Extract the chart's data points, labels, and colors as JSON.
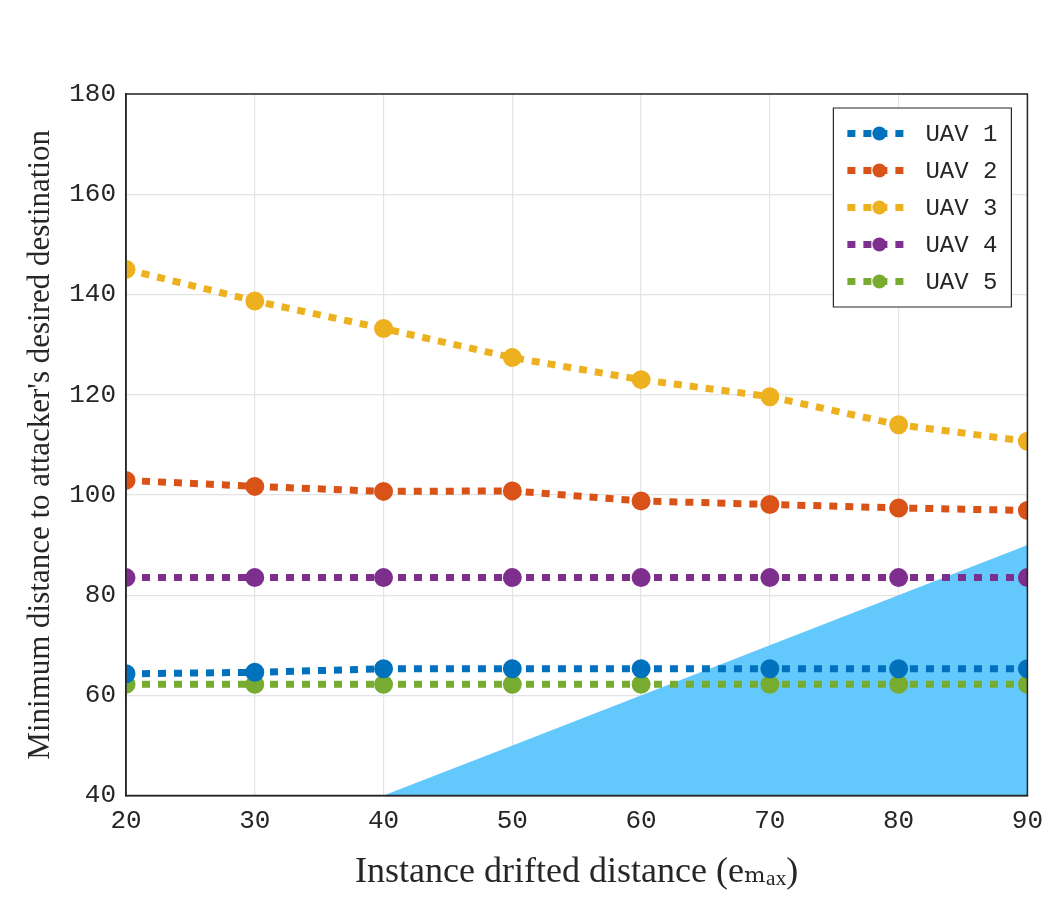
{
  "chart_data": {
    "type": "line",
    "xlabel": "Instance drifted distance (eₘₐₓ)",
    "ylabel": "Minimum distance to attacker's desired destination",
    "x": [
      20,
      30,
      40,
      50,
      60,
      70,
      80,
      90
    ],
    "series": [
      {
        "type": "area",
        "color": "#63c9fc",
        "x": [
          40,
          90
        ],
        "values": [
          40,
          90
        ],
        "marker": "none"
      },
      {
        "name": "UAV 1",
        "color": "#0072bd",
        "values": [
          64.3,
          64.6,
          65.3,
          65.3,
          65.3,
          65.3,
          65.3,
          65.3
        ]
      },
      {
        "name": "UAV 2",
        "color": "#d95319",
        "values": [
          102.9,
          101.7,
          100.7,
          100.8,
          98.8,
          98.1,
          97.4,
          96.9
        ]
      },
      {
        "name": "UAV 3",
        "color": "#edb120",
        "values": [
          145,
          138.7,
          133.2,
          127.4,
          123,
          119.6,
          114,
          110.7
        ]
      },
      {
        "name": "UAV 4",
        "color": "#7e2f8e",
        "values": [
          83.5,
          83.5,
          83.5,
          83.5,
          83.5,
          83.5,
          83.5,
          83.5
        ]
      },
      {
        "name": "UAV 5",
        "color": "#77ac30",
        "values": [
          62.2,
          62.2,
          62.2,
          62.2,
          62.2,
          62.2,
          62.2,
          62.2
        ]
      }
    ],
    "xlim": [
      20,
      90
    ],
    "xticks": [
      20,
      30,
      40,
      50,
      60,
      70,
      80,
      90
    ],
    "ylim": [
      40,
      180
    ],
    "yticks": [
      40,
      60,
      80,
      100,
      120,
      140,
      160,
      180
    ],
    "grid": true,
    "legend": "top right",
    "marker": "circle",
    "line_style": "dotted"
  }
}
